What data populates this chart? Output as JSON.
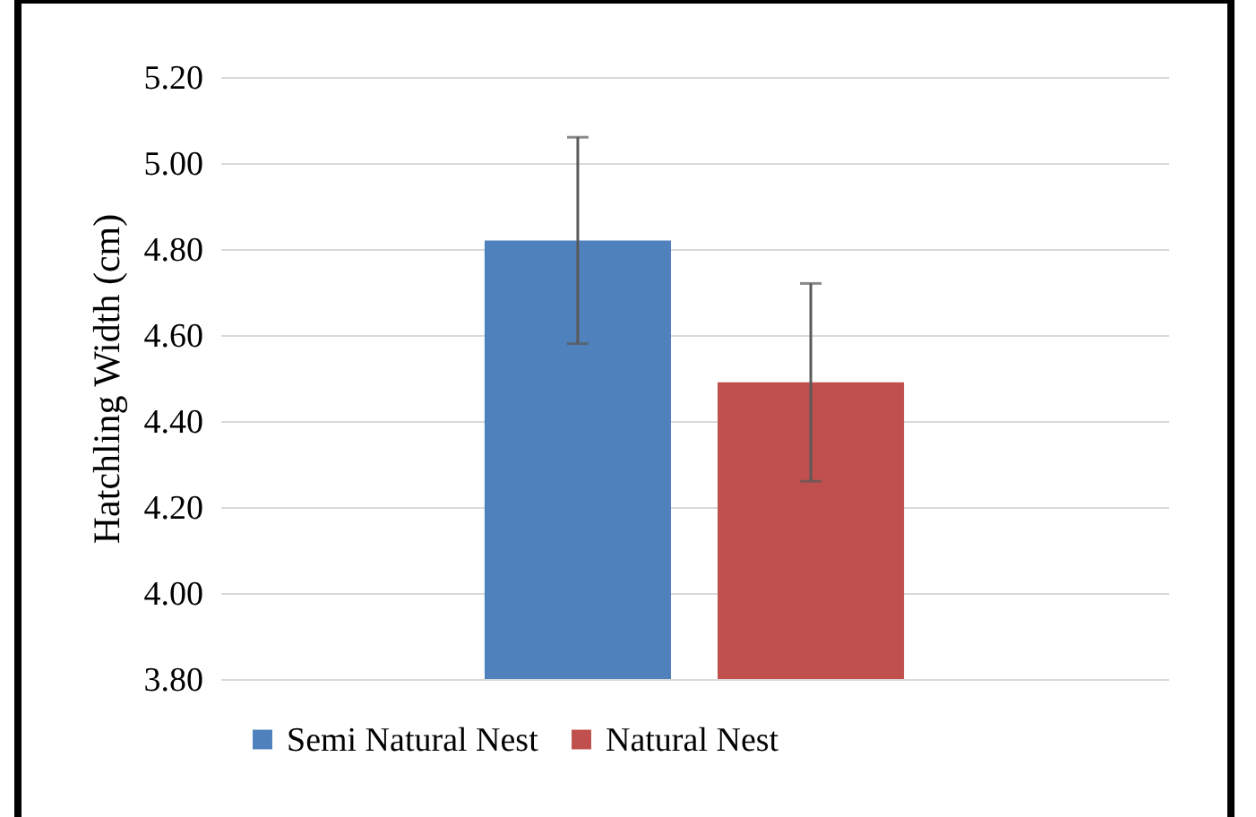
{
  "chart_data": {
    "type": "bar",
    "ylabel": "Hatchling Width (cm)",
    "categories": [
      null
    ],
    "series": [
      {
        "name": "Semi Natural Nest",
        "color": "#4f81bd",
        "values": [
          4.82
        ],
        "errors": [
          0.24
        ]
      },
      {
        "name": "Natural Nest",
        "color": "#c0504d",
        "values": [
          4.49
        ],
        "errors": [
          0.23
        ]
      }
    ],
    "ylim": [
      3.8,
      5.2
    ],
    "yticks": [
      {
        "value": 3.8,
        "label": "3.80"
      },
      {
        "value": 4,
        "label": "4.00"
      },
      {
        "value": 4.2,
        "label": "4.20"
      },
      {
        "value": 4.4,
        "label": "4.40"
      },
      {
        "value": 4.6,
        "label": "4.60"
      },
      {
        "value": 4.8,
        "label": "4.80"
      },
      {
        "value": 5,
        "label": "5.00"
      },
      {
        "value": 5.2,
        "label": "5.20"
      }
    ],
    "grid": "y",
    "legend": "bottom",
    "tick_labels": "y"
  }
}
